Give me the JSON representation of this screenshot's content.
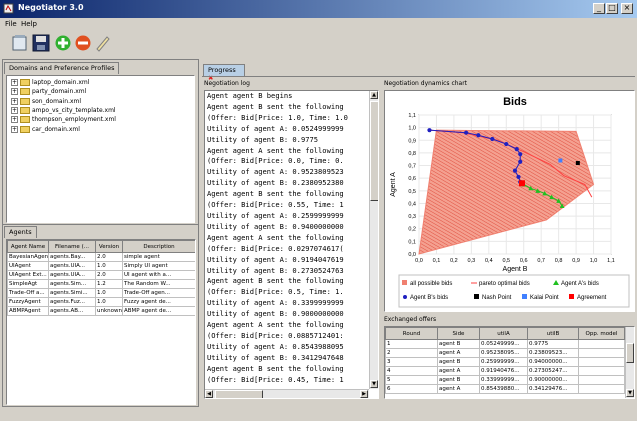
{
  "window": {
    "title": "Negotiator 3.0"
  },
  "menu": [
    "File",
    "Help"
  ],
  "toolbar": {
    "buttons": [
      "open-icon",
      "save-icon",
      "add-icon",
      "remove-icon",
      "edit-icon"
    ]
  },
  "domains_panel": {
    "tab": "Domains and Preference Profiles",
    "items": [
      "laptop_domain.xml",
      "party_domain.xml",
      "son_domain.xml",
      "ampo_vs_city_template.xml",
      "thompson_employment.xml",
      "car_domain.xml"
    ]
  },
  "agents_panel": {
    "tab": "Agents",
    "columns": [
      "Agent Name",
      "Filename (...",
      "Version",
      "Description"
    ],
    "rows": [
      [
        "BayesianAgent",
        "agents.Bay...",
        "2.0",
        "simple agent"
      ],
      [
        "UIAgent",
        "agents.UIA...",
        "1.0",
        "Simply UI agent"
      ],
      [
        "UIAgent Ext...",
        "agents.UIA...",
        "2.0",
        "UI agent with a..."
      ],
      [
        "SimpleAgt",
        "agents.Sim...",
        "1.2",
        "The Random W..."
      ],
      [
        "Trade-Off a...",
        "agents.Simi...",
        "1.0",
        "Trade-Off agen..."
      ],
      [
        "FuzzyAgent",
        "agents.Fuz...",
        "1.0",
        "Fuzzy agent de..."
      ],
      [
        "ABMPAgent",
        "agents.AB...",
        "unknown",
        "ABMP agent de..."
      ]
    ]
  },
  "progress_tab": {
    "label": "Progress"
  },
  "log": {
    "title": "Negotiation log",
    "lines": [
      "Agent agent B begins",
      "Agent agent B sent the following",
      "(Offer: Bid[Price: 1.0, Time: 1.0",
      "Utility of agent A: 0.0524999999",
      "Utility of agent B: 0.9775",
      "Agent agent A sent the following",
      "(Offer: Bid[Price: 0.0, Time: 0.",
      "Utility of agent A: 0.9523809523",
      "Utility of agent B: 0.2380952380",
      "Agent agent B sent the following",
      "(Offer: Bid[Price: 0.55, Time: 1",
      "Utility of agent A: 0.2599999999",
      "Utility of agent B: 0.9400000000",
      "Agent agent A sent the following",
      "(Offer: Bid[Price: 0.0297074617(",
      "Utility of agent A: 0.9194047619",
      "Utility of agent B: 0.2730524763",
      "Agent agent B sent the following",
      "(Offer: Bid[Price: 0.5, Time: 1.",
      "Utility of agent A: 0.3399999999",
      "Utility of agent B: 0.9000000000",
      "Agent agent A sent the following",
      "(Offer: Bid[Price: 0.0885712401:",
      "Utility of agent A: 0.8543988095",
      "Utility of agent B: 0.3412947648",
      "Agent agent B sent the following",
      "(Offer: Bid[Price: 0.45, Time: 1"
    ]
  },
  "dynamics": {
    "title": "Negotiation dynamics chart",
    "legend": [
      "all possible bids",
      "pareto optimal bids",
      "Agent A's bids",
      "Agent B's bids",
      "Nash Point",
      "Kalai Point",
      "Agreement"
    ]
  },
  "chart_data": {
    "type": "scatter",
    "title": "Bids",
    "xlabel": "Agent B",
    "ylabel": "Agent A",
    "xlim": [
      0.0,
      1.1
    ],
    "ylim": [
      0.0,
      1.1
    ],
    "xticks": [
      "0,0",
      "0,1",
      "0,2",
      "0,3",
      "0,4",
      "0,5",
      "0,6",
      "0,7",
      "0,8",
      "0,9",
      "1,0",
      "1,1"
    ],
    "yticks": [
      "0,0",
      "0,1",
      "0,2",
      "0,3",
      "0,4",
      "0,5",
      "0,6",
      "0,7",
      "0,8",
      "0,9",
      "1,0",
      "1,1"
    ],
    "colors": {
      "possible": "#f08070",
      "pareto": "#ff4040",
      "agentA": "#20c020",
      "agentB": "#2020c0",
      "nash": "#000000",
      "kalai": "#4080ff",
      "agreement": "#ff0000"
    },
    "possible_region": [
      [
        0.1,
        0.98
      ],
      [
        0.9,
        0.97
      ],
      [
        1.0,
        0.55
      ],
      [
        0.73,
        0.27
      ],
      [
        0.0,
        0.0
      ]
    ],
    "pareto": [
      [
        0.06,
        0.98
      ],
      [
        0.25,
        0.96
      ],
      [
        0.45,
        0.9
      ],
      [
        0.6,
        0.81
      ],
      [
        0.75,
        0.71
      ],
      [
        0.83,
        0.62
      ],
      [
        0.95,
        0.55
      ],
      [
        0.99,
        0.45
      ]
    ],
    "agentA": [
      [
        0.6,
        0.55
      ],
      [
        0.64,
        0.52
      ],
      [
        0.68,
        0.5
      ],
      [
        0.72,
        0.48
      ],
      [
        0.76,
        0.45
      ],
      [
        0.8,
        0.42
      ],
      [
        0.82,
        0.38
      ]
    ],
    "agentB": [
      [
        0.06,
        0.98
      ],
      [
        0.27,
        0.96
      ],
      [
        0.34,
        0.94
      ],
      [
        0.42,
        0.91
      ],
      [
        0.5,
        0.87
      ],
      [
        0.56,
        0.83
      ],
      [
        0.58,
        0.79
      ],
      [
        0.58,
        0.73
      ],
      [
        0.55,
        0.66
      ],
      [
        0.57,
        0.61
      ],
      [
        0.58,
        0.57
      ]
    ],
    "nash": [
      [
        0.91,
        0.72
      ]
    ],
    "kalai": [
      [
        0.81,
        0.74
      ]
    ],
    "agreement": [
      [
        0.59,
        0.56
      ]
    ]
  },
  "offers": {
    "title": "Exchanged offers",
    "columns": [
      "Round",
      "Side",
      "utilA",
      "utilB",
      "Opp. model"
    ],
    "rows": [
      [
        "1",
        "agent B",
        "0.05249999...",
        "0.9775",
        ""
      ],
      [
        "2",
        "agent A",
        "0.95238095...",
        "0.23809523...",
        ""
      ],
      [
        "3",
        "agent B",
        "0.25999999...",
        "0.94000000...",
        ""
      ],
      [
        "4",
        "agent A",
        "0.91940476...",
        "0.27305247...",
        ""
      ],
      [
        "5",
        "agent B",
        "0.33999999...",
        "0.90000000...",
        ""
      ],
      [
        "6",
        "agent A",
        "0.85439880...",
        "0.34129476...",
        ""
      ]
    ]
  }
}
